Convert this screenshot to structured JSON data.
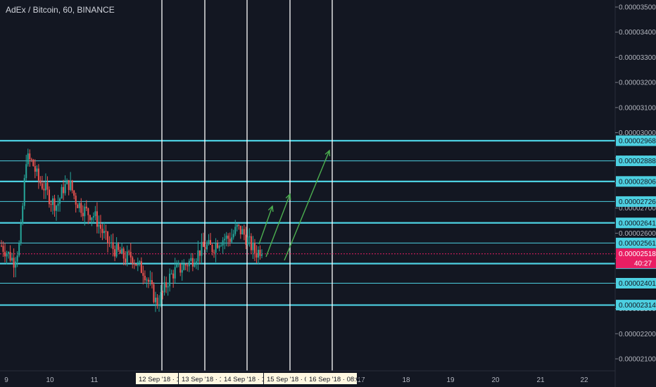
{
  "header": {
    "title": "AdEx / Bitcoin, 60, BINANCE"
  },
  "chart_data": {
    "type": "candlestick",
    "title": "AdEx / Bitcoin, 60, BINANCE",
    "ylim": [
      2.05e-05,
      3.55e-05
    ],
    "y_ticks": [
      "0.00003500",
      "0.00003400",
      "0.00003300",
      "0.00003200",
      "0.00003100",
      "0.00003000",
      "0.00002900",
      "0.00002800",
      "0.00002700",
      "0.00002600",
      "0.00002500",
      "0.00002400",
      "0.00002300",
      "0.00002200",
      "0.00002100"
    ],
    "y_tick_values": [
      3.5e-05,
      3.4e-05,
      3.3e-05,
      3.2e-05,
      3.1e-05,
      3e-05,
      2.9e-05,
      2.8e-05,
      2.7e-05,
      2.6e-05,
      2.5e-05,
      2.4e-05,
      2.3e-05,
      2.2e-05,
      2.1e-05
    ],
    "x_ticks": [
      "9",
      "10",
      "11",
      "17",
      "18",
      "19",
      "20",
      "21",
      "22"
    ],
    "time_labels": [
      "12 Sep '18 · 12",
      "13 Sep '18 · 11",
      "14 Sep '18 · 10",
      "15 Sep '18 · 09",
      "16 Sep '18 · 08:00"
    ],
    "horizontal_levels": [
      {
        "label": "0.00002968",
        "value": 2.968e-05,
        "bold": true
      },
      {
        "label": "0.00002888",
        "value": 2.888e-05,
        "bold": false
      },
      {
        "label": "0.00002806",
        "value": 2.806e-05,
        "bold": true
      },
      {
        "label": "0.00002726",
        "value": 2.726e-05,
        "bold": false
      },
      {
        "label": "0.00002641",
        "value": 2.641e-05,
        "bold": true
      },
      {
        "label": "0.00002561",
        "value": 2.561e-05,
        "bold": false
      },
      {
        "label": "0.00002479",
        "value": 2.479e-05,
        "bold": true
      },
      {
        "label": "0.00002401",
        "value": 2.401e-05,
        "bold": false
      },
      {
        "label": "0.00002314",
        "value": 2.314e-05,
        "bold": true
      }
    ],
    "current_price": {
      "label": "0.00002518",
      "value": 2.518e-05,
      "countdown": "40:27"
    },
    "price_path": [
      2.55e-05,
      2.52e-05,
      2.49e-05,
      2.56e-05,
      2.9e-05,
      2.88e-05,
      2.81e-05,
      2.78e-05,
      2.73e-05,
      2.71e-05,
      2.78e-05,
      2.8e-05,
      2.73e-05,
      2.7e-05,
      2.68e-05,
      2.67e-05,
      2.62e-05,
      2.57e-05,
      2.54e-05,
      2.52e-05,
      2.5e-05,
      2.51e-05,
      2.47e-05,
      2.45e-05,
      2.39e-05,
      2.32e-05,
      2.36e-05,
      2.42e-05,
      2.45e-05,
      2.46e-05,
      2.48e-05,
      2.5e-05,
      2.53e-05,
      2.55e-05,
      2.54e-05,
      2.57e-05,
      2.58e-05,
      2.58e-05,
      2.62e-05,
      2.6e-05,
      2.56e-05,
      2.52e-05,
      2.54e-05
    ],
    "colors": {
      "up": "#26a69a",
      "down": "#ef5350",
      "level": "#4dd0e1",
      "vline": "#ffffff",
      "arrow": "#4caf50",
      "current": "#e91e63",
      "bg": "#131722"
    }
  }
}
